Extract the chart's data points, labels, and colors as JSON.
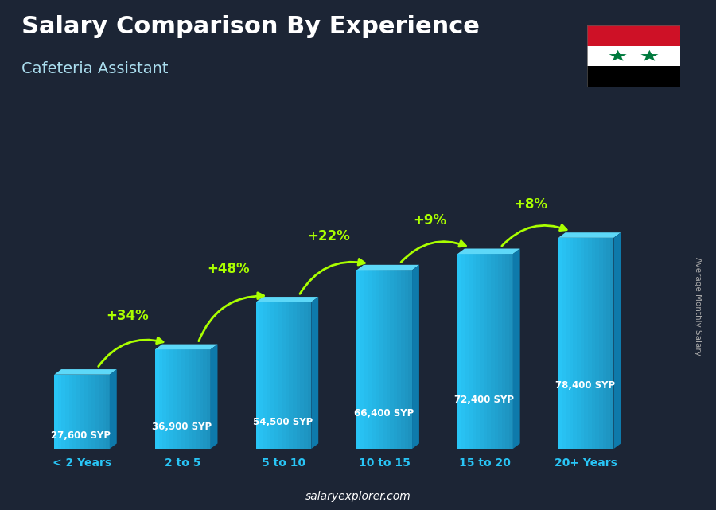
{
  "title": "Salary Comparison By Experience",
  "subtitle": "Cafeteria Assistant",
  "ylabel": "Average Monthly Salary",
  "categories": [
    "< 2 Years",
    "2 to 5",
    "5 to 10",
    "10 to 15",
    "15 to 20",
    "20+ Years"
  ],
  "values": [
    27600,
    36900,
    54500,
    66400,
    72400,
    78400
  ],
  "labels": [
    "27,600 SYP",
    "36,900 SYP",
    "54,500 SYP",
    "66,400 SYP",
    "72,400 SYP",
    "78,400 SYP"
  ],
  "pct_changes": [
    null,
    "+34%",
    "+48%",
    "+22%",
    "+9%",
    "+8%"
  ],
  "bar_color_front": "#29c5f6",
  "bar_color_top": "#5dd8f8",
  "bar_color_side": "#0e7aab",
  "bg_color": "#1c2535",
  "title_color": "#ffffff",
  "subtitle_color": "#aaddee",
  "label_color": "#ffffff",
  "pct_color": "#aaff00",
  "tick_color": "#29c5f6",
  "website": "salaryexplorer.com",
  "website_color": "#ffffff"
}
